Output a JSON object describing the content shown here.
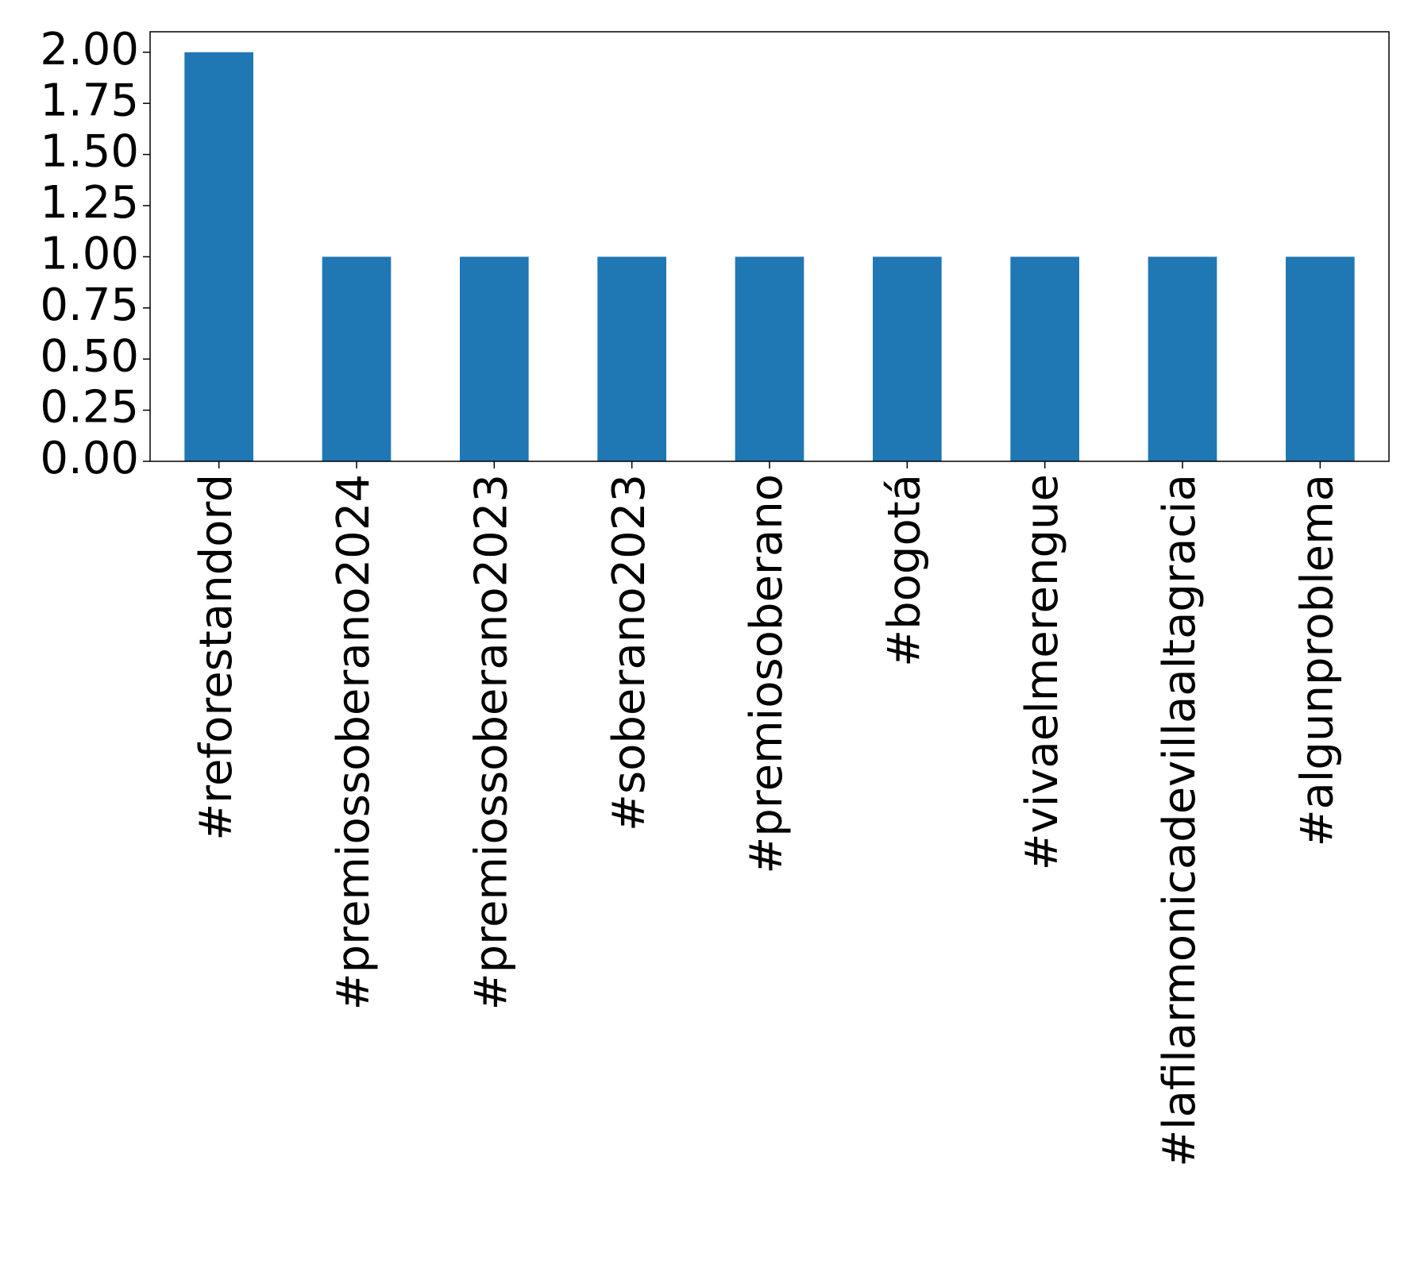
{
  "chart_data": {
    "type": "bar",
    "categories": [
      "#reforestandord",
      "#premiossoberano2024",
      "#premiossoberano2023",
      "#soberano2023",
      "#premiosoberano",
      "#bogotá",
      "#vivaelmerengue",
      "#lafilarmonicadevillaaltagracia",
      "#algunproblema"
    ],
    "values": [
      2,
      1,
      1,
      1,
      1,
      1,
      1,
      1,
      1
    ],
    "color": "#1f77b4",
    "ylim": [
      0,
      2.1
    ],
    "yticks": [
      {
        "value": 0,
        "label": "0.00"
      },
      {
        "value": 0.25,
        "label": "0.25"
      },
      {
        "value": 0.5,
        "label": "0.50"
      },
      {
        "value": 0.75,
        "label": "0.75"
      },
      {
        "value": 1,
        "label": "1.00"
      },
      {
        "value": 1.25,
        "label": "1.25"
      },
      {
        "value": 1.5,
        "label": "1.50"
      },
      {
        "value": 1.75,
        "label": "1.75"
      },
      {
        "value": 2,
        "label": "2.00"
      }
    ],
    "grid": false
  }
}
